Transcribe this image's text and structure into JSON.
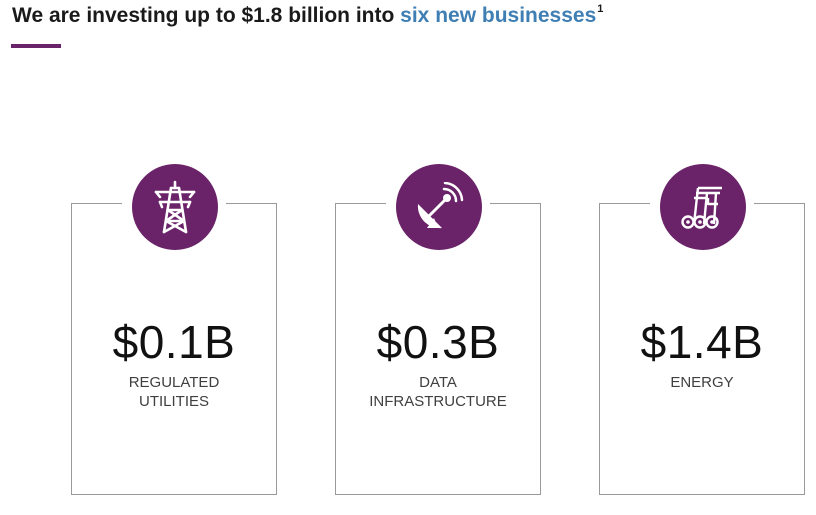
{
  "header": {
    "title_prefix": "We are investing up to $1.8 billion into ",
    "title_highlight": "six new businesses",
    "title_footnote": "1",
    "accent_color": "#6a2368",
    "highlight_color": "#3f7fb4"
  },
  "cards": [
    {
      "amount": "$0.1B",
      "label_lines": [
        "REGULATED",
        "UTILITIES"
      ],
      "icon": "power-tower-icon"
    },
    {
      "amount": "$0.3B",
      "label_lines": [
        "DATA",
        "INFRASTRUCTURE"
      ],
      "icon": "satellite-dish-icon"
    },
    {
      "amount": "$1.4B",
      "label_lines": [
        "ENERGY"
      ],
      "icon": "pipeline-icon"
    }
  ]
}
